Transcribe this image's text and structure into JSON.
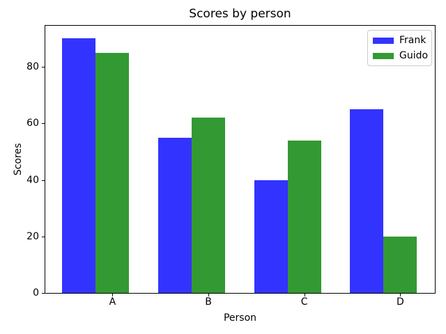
{
  "chart_data": {
    "type": "bar",
    "title": "Scores by person",
    "xlabel": "Person",
    "ylabel": "Scores",
    "categories": [
      "A",
      "B",
      "C",
      "D"
    ],
    "series": [
      {
        "name": "Frank",
        "color": "#3333ff",
        "values": [
          90,
          55,
          40,
          65
        ]
      },
      {
        "name": "Guido",
        "color": "#339933",
        "values": [
          85,
          62,
          54,
          20
        ]
      }
    ],
    "ylim": [
      0,
      94.5
    ],
    "yticks": [
      0,
      20,
      40,
      60,
      80
    ],
    "xlim": [
      -0.35,
      3.71
    ],
    "bar_width": 0.35,
    "xtick_offset": 0.35,
    "grid": false,
    "legend_position": "upper right",
    "background_color": "#ffffff",
    "spine_color": "#000000"
  }
}
